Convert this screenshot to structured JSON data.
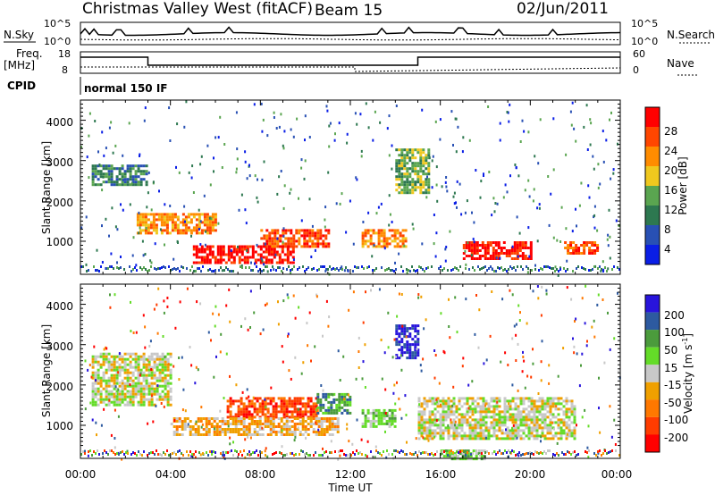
{
  "header": {
    "station": "Christmas Valley West (fitACF)",
    "beam": "Beam 15",
    "date": "02/Jun/2011"
  },
  "panels": {
    "nsky_label": "N.Sky",
    "nsearch_label": "N.Search",
    "nsky_ticks": [
      "10^5",
      "10^0"
    ],
    "nsearch_ticks": [
      "10^5",
      "10^0"
    ],
    "freq_label": "Freq.",
    "freq_unit": "[MHz]",
    "freq_ticks": [
      "18",
      "8"
    ],
    "nave_label": "Nave",
    "nave_ticks": [
      "60",
      "0"
    ],
    "cpid_label": "CPID",
    "cpid_value": "normal 150 IF"
  },
  "colors": {
    "power": [
      "#0a1ee6",
      "#2850b4",
      "#2d7850",
      "#5aa550",
      "#f0c81e",
      "#ff8c00",
      "#ff4600",
      "#ff0000"
    ],
    "velocity": [
      "#2814dc",
      "#2d5aa0",
      "#4b9b3c",
      "#64dc28",
      "#c8c8c8",
      "#f0a000",
      "#ff7800",
      "#ff3c00",
      "#ff0000"
    ]
  },
  "chart_data": [
    {
      "type": "heatmap",
      "name": "power",
      "xlabel": "",
      "ylabel": "Slant Range [km]",
      "xlim": [
        0,
        24
      ],
      "ylim": [
        180,
        4500
      ],
      "yticks": [
        "1000",
        "2000",
        "3000",
        "4000"
      ],
      "colorbar_label": "Power [dB]",
      "colorbar_ticks": [
        "4",
        "8",
        "12",
        "16",
        "20",
        "24",
        "28"
      ],
      "regions": [
        {
          "time": [
            5.0,
            9.5
          ],
          "range": [
            500,
            900
          ],
          "level": 7
        },
        {
          "time": [
            8.0,
            11.0
          ],
          "range": [
            900,
            1300
          ],
          "level": 6
        },
        {
          "time": [
            2.5,
            6.0
          ],
          "range": [
            1200,
            1700
          ],
          "level": 5
        },
        {
          "time": [
            17.0,
            20.0
          ],
          "range": [
            600,
            1000
          ],
          "level": 7
        },
        {
          "time": [
            21.5,
            23.0
          ],
          "range": [
            700,
            1000
          ],
          "level": 6
        },
        {
          "time": [
            12.5,
            14.5
          ],
          "range": [
            900,
            1300
          ],
          "level": 5
        },
        {
          "time": [
            0.5,
            3.0
          ],
          "range": [
            2400,
            2900
          ],
          "level": 2
        },
        {
          "time": [
            14.0,
            15.5
          ],
          "range": [
            2200,
            3300
          ],
          "level": 3
        }
      ]
    },
    {
      "type": "heatmap",
      "name": "velocity",
      "xlabel": "Time UT",
      "ylabel": "Slant Range [km]",
      "xlim": [
        0,
        24
      ],
      "ylim": [
        180,
        4500
      ],
      "xticks": [
        "00:00",
        "04:00",
        "08:00",
        "12:00",
        "16:00",
        "20:00",
        "00:00"
      ],
      "yticks": [
        "1000",
        "2000",
        "3000",
        "4000"
      ],
      "colorbar_label": "Velocity [m s^-1]",
      "colorbar_ticks": [
        "200",
        "100",
        "50",
        "15",
        "-15",
        "-50",
        "-100",
        "-200"
      ],
      "regions": [
        {
          "time": [
            6.5,
            10.5
          ],
          "range": [
            1200,
            1700
          ],
          "level": 7
        },
        {
          "time": [
            10.5,
            12.0
          ],
          "range": [
            1300,
            1800
          ],
          "level": 2
        },
        {
          "time": [
            4.0,
            11.5
          ],
          "range": [
            800,
            1200
          ],
          "level": 5
        },
        {
          "time": [
            12.5,
            14.0
          ],
          "range": [
            1000,
            1400
          ],
          "level": 3
        },
        {
          "time": [
            15.0,
            22.0
          ],
          "range": [
            700,
            1700
          ],
          "level": 4
        },
        {
          "time": [
            0.5,
            4.0
          ],
          "range": [
            1500,
            2800
          ],
          "level": 4
        },
        {
          "time": [
            14.0,
            15.0
          ],
          "range": [
            2700,
            3500
          ],
          "level": 0
        },
        {
          "time": [
            16.0,
            18.0
          ],
          "range": [
            200,
            400
          ],
          "level": 3
        }
      ]
    }
  ]
}
